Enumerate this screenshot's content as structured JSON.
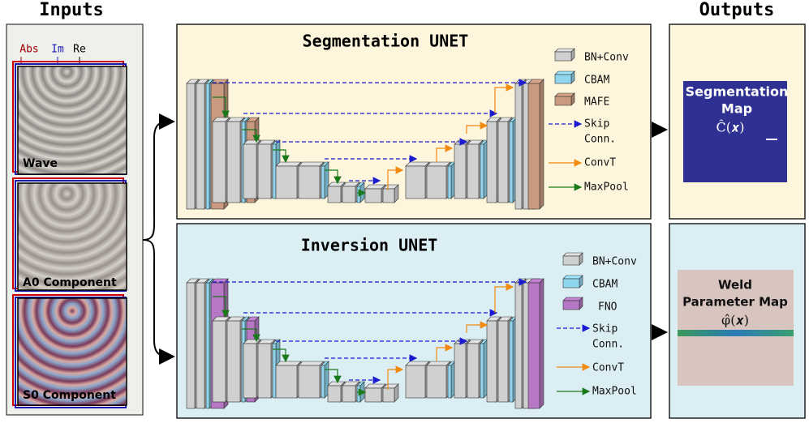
{
  "inputs": {
    "title": "Inputs",
    "channels": [
      "Abs",
      "Im",
      "Re"
    ],
    "panels": [
      "Wave",
      "A0 Component",
      "S0 Component"
    ]
  },
  "segmentation_unet": {
    "title": "Segmentation UNET",
    "legend": {
      "bn_conv": "BN+Conv",
      "cbam": "CBAM",
      "block": "MAFE",
      "skip": [
        "Skip",
        "Conn."
      ],
      "convt": "ConvT",
      "maxpool": "MaxPool"
    }
  },
  "inversion_unet": {
    "title": "Inversion UNET",
    "legend": {
      "bn_conv": "BN+Conv",
      "cbam": "CBAM",
      "block": "FNO",
      "skip": [
        "Skip",
        "Conn."
      ],
      "convt": "ConvT",
      "maxpool": "MaxPool"
    }
  },
  "outputs": {
    "title": "Outputs",
    "segmentation": {
      "lines": [
        "Segmentation",
        "Map"
      ],
      "symbol": "Ĉ(𝒙)"
    },
    "weld": {
      "lines": [
        "Weld",
        "Parameter Map"
      ],
      "symbol": "φ̂(𝒙)"
    }
  }
}
